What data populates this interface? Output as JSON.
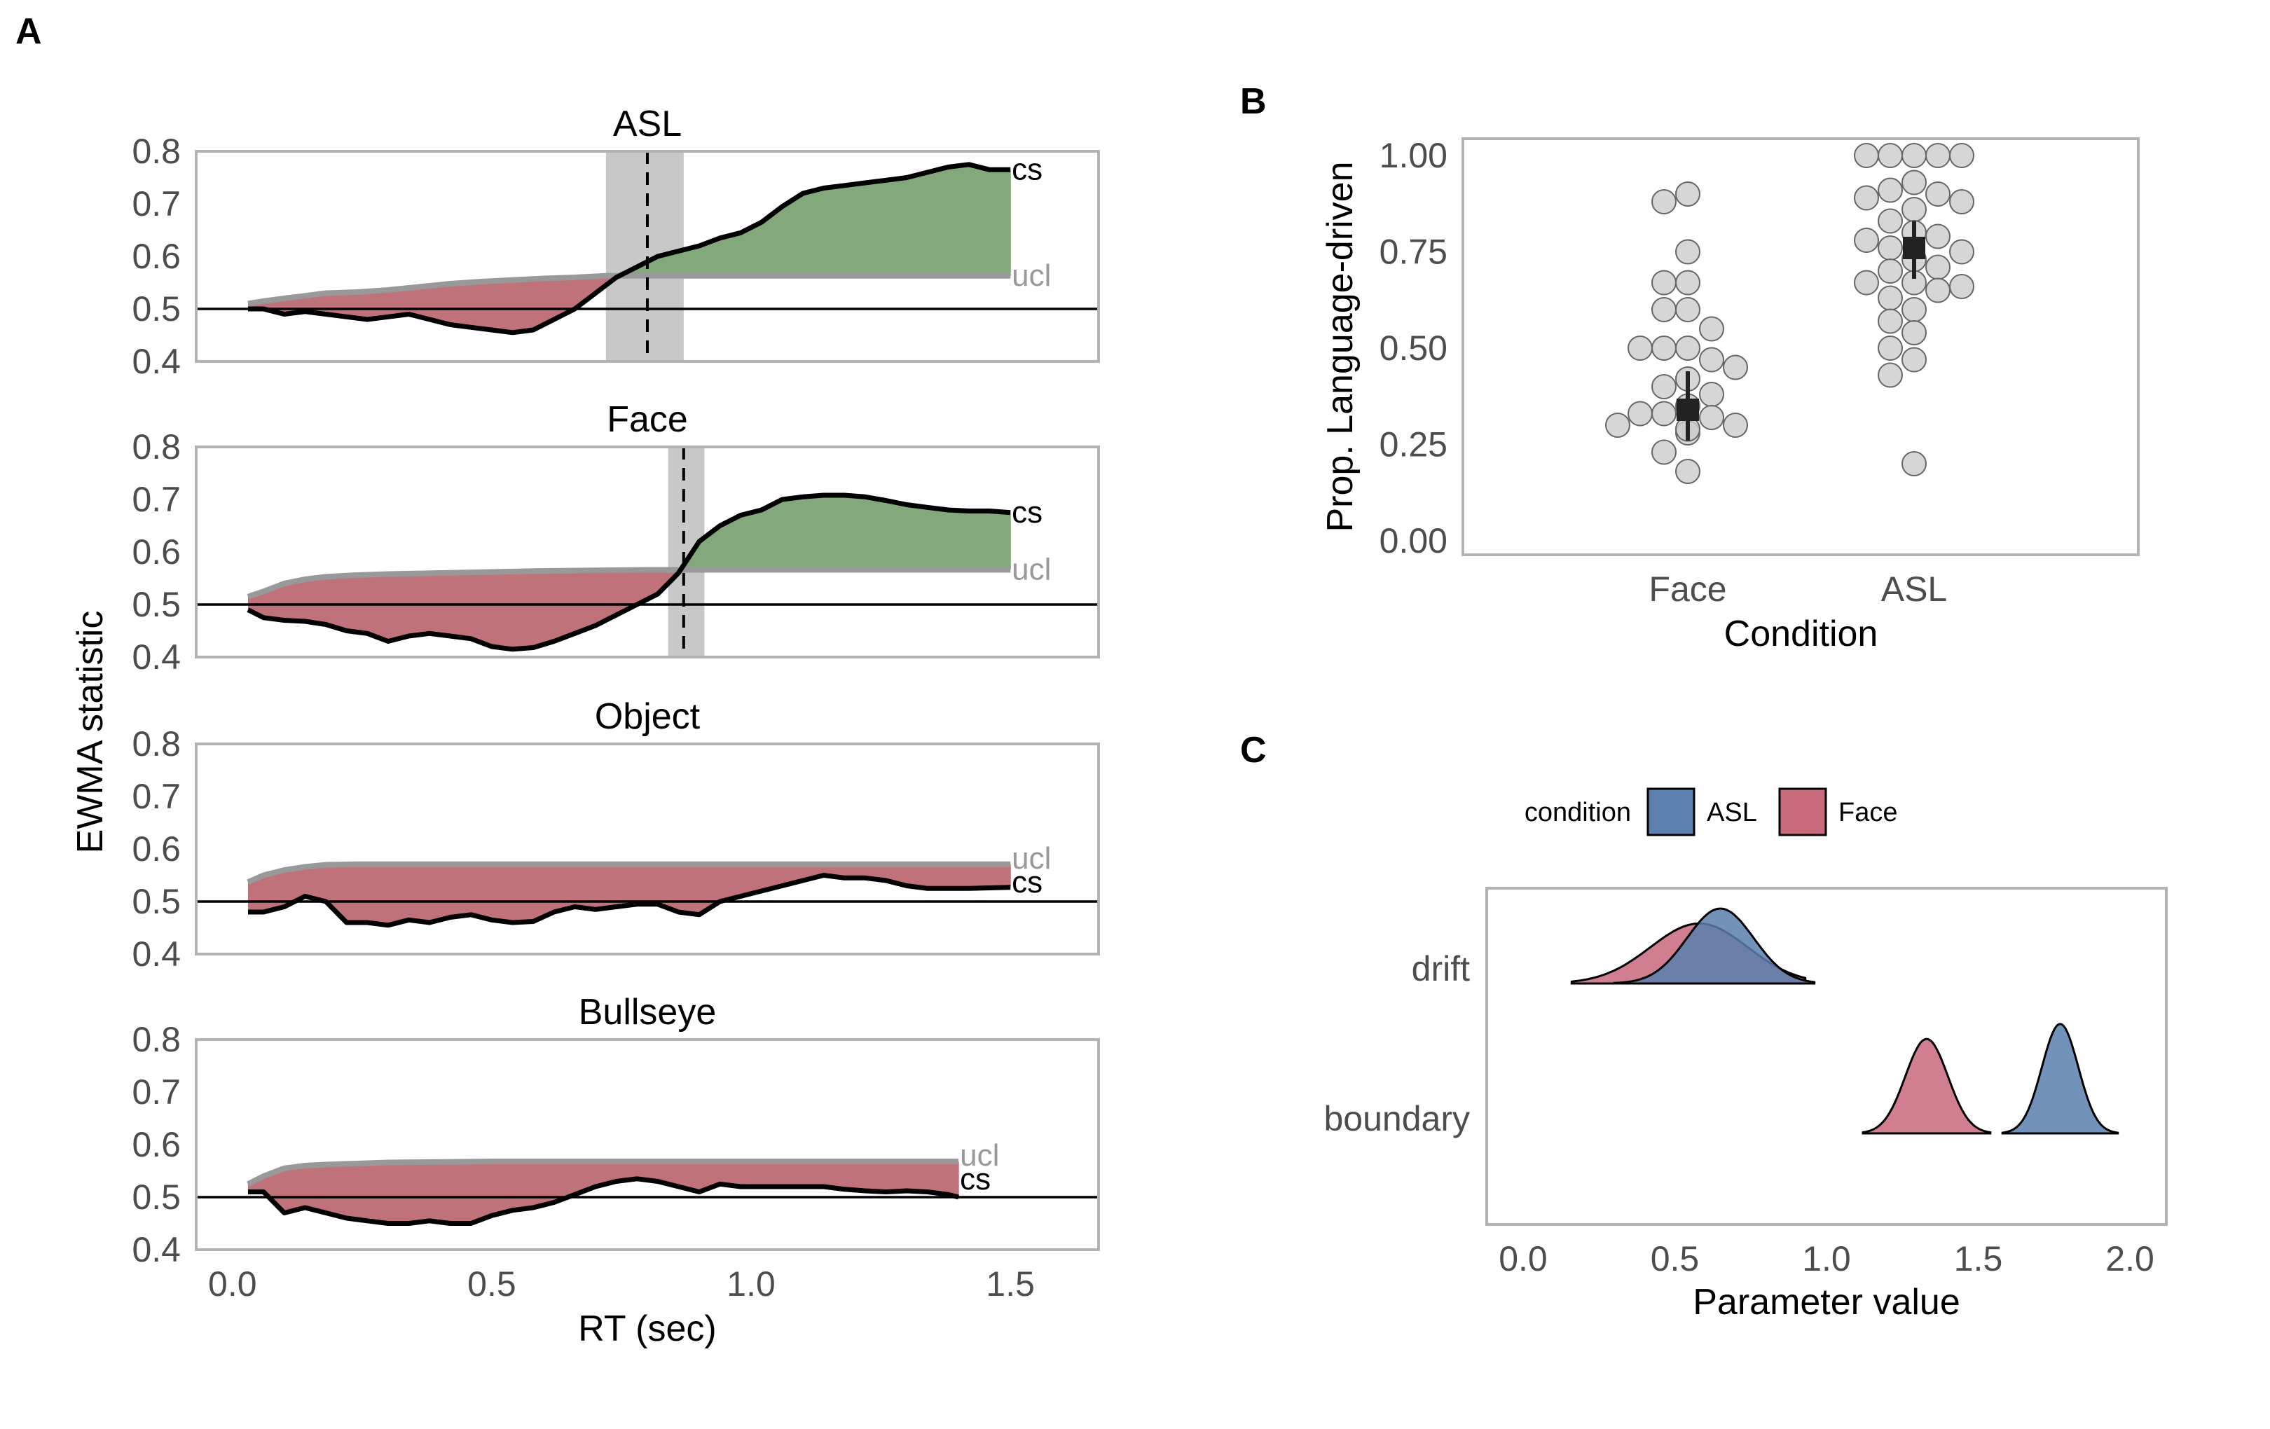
{
  "panel_labels": {
    "a": "A",
    "b": "B",
    "c": "C"
  },
  "colors": {
    "below_fill": "#c0727a",
    "above_fill": "#82a87b",
    "ucl_line": "#999999",
    "cs_line": "#000000",
    "crossing_band": "#c8c8c8",
    "asl": "#5b7fae",
    "face": "#c9697c",
    "points": "#cccccc"
  },
  "chart_data": [
    {
      "type": "area",
      "panel": "A",
      "xlabel": "RT (sec)",
      "ylabel": "EWMA statistic",
      "xlim": [
        -0.07,
        1.67
      ],
      "ylim": [
        0.4,
        0.8
      ],
      "xticks": [
        "0.0",
        "0.5",
        "1.0",
        "1.5"
      ],
      "yticks": [
        "0.4",
        "0.5",
        "0.6",
        "0.7",
        "0.8"
      ],
      "reference_line": 0.5,
      "series_labels": {
        "cs": "cs",
        "ucl": "ucl"
      },
      "facets": [
        {
          "title": "ASL",
          "crossing_time": 0.8,
          "crossing_band": [
            0.72,
            0.87
          ],
          "ucl_x": [
            0.03,
            0.06,
            0.1,
            0.14,
            0.18,
            0.24,
            0.3,
            0.36,
            0.42,
            0.48,
            0.54,
            0.6,
            0.66,
            0.72,
            1.5
          ],
          "ucl_y": [
            0.51,
            0.515,
            0.52,
            0.525,
            0.53,
            0.532,
            0.536,
            0.542,
            0.548,
            0.552,
            0.555,
            0.558,
            0.56,
            0.563,
            0.563
          ],
          "cs_x": [
            0.03,
            0.06,
            0.1,
            0.14,
            0.18,
            0.22,
            0.26,
            0.3,
            0.34,
            0.38,
            0.42,
            0.46,
            0.5,
            0.54,
            0.58,
            0.62,
            0.66,
            0.7,
            0.74,
            0.78,
            0.82,
            0.86,
            0.9,
            0.94,
            0.98,
            1.02,
            1.06,
            1.1,
            1.14,
            1.18,
            1.22,
            1.26,
            1.3,
            1.34,
            1.38,
            1.42,
            1.46,
            1.5
          ],
          "cs_y": [
            0.5,
            0.5,
            0.49,
            0.495,
            0.49,
            0.485,
            0.48,
            0.485,
            0.49,
            0.48,
            0.47,
            0.465,
            0.46,
            0.455,
            0.46,
            0.48,
            0.5,
            0.53,
            0.56,
            0.58,
            0.6,
            0.61,
            0.62,
            0.635,
            0.645,
            0.665,
            0.695,
            0.72,
            0.73,
            0.735,
            0.74,
            0.745,
            0.75,
            0.76,
            0.77,
            0.775,
            0.765,
            0.765
          ]
        },
        {
          "title": "Face",
          "crossing_time": 0.87,
          "crossing_band": [
            0.84,
            0.91
          ],
          "ucl_x": [
            0.03,
            0.06,
            0.1,
            0.14,
            0.18,
            0.24,
            0.3,
            0.4,
            0.5,
            0.6,
            0.7,
            0.8,
            1.5
          ],
          "ucl_y": [
            0.515,
            0.525,
            0.54,
            0.548,
            0.553,
            0.556,
            0.558,
            0.56,
            0.562,
            0.564,
            0.565,
            0.566,
            0.566
          ],
          "cs_x": [
            0.03,
            0.06,
            0.1,
            0.14,
            0.18,
            0.22,
            0.26,
            0.3,
            0.34,
            0.38,
            0.42,
            0.46,
            0.5,
            0.54,
            0.58,
            0.62,
            0.66,
            0.7,
            0.74,
            0.78,
            0.82,
            0.86,
            0.9,
            0.94,
            0.98,
            1.02,
            1.06,
            1.1,
            1.14,
            1.18,
            1.22,
            1.26,
            1.3,
            1.34,
            1.38,
            1.42,
            1.46,
            1.5
          ],
          "cs_y": [
            0.49,
            0.475,
            0.47,
            0.468,
            0.462,
            0.45,
            0.445,
            0.43,
            0.44,
            0.445,
            0.44,
            0.435,
            0.42,
            0.415,
            0.418,
            0.43,
            0.445,
            0.46,
            0.48,
            0.5,
            0.52,
            0.56,
            0.62,
            0.65,
            0.67,
            0.68,
            0.7,
            0.705,
            0.708,
            0.708,
            0.705,
            0.698,
            0.69,
            0.685,
            0.68,
            0.678,
            0.678,
            0.675
          ]
        },
        {
          "title": "Object",
          "ucl_x": [
            0.03,
            0.06,
            0.1,
            0.14,
            0.18,
            0.24,
            0.3,
            0.4,
            0.5,
            0.6,
            0.7,
            0.8,
            1.5
          ],
          "ucl_y": [
            0.537,
            0.55,
            0.56,
            0.566,
            0.57,
            0.571,
            0.571,
            0.571,
            0.571,
            0.571,
            0.571,
            0.571,
            0.571
          ],
          "cs_x": [
            0.03,
            0.06,
            0.1,
            0.14,
            0.18,
            0.22,
            0.26,
            0.3,
            0.34,
            0.38,
            0.42,
            0.46,
            0.5,
            0.54,
            0.58,
            0.62,
            0.66,
            0.7,
            0.74,
            0.78,
            0.82,
            0.86,
            0.9,
            0.94,
            0.98,
            1.02,
            1.06,
            1.1,
            1.14,
            1.18,
            1.22,
            1.26,
            1.3,
            1.34,
            1.38,
            1.42,
            1.46,
            1.5
          ],
          "cs_y": [
            0.48,
            0.48,
            0.49,
            0.51,
            0.5,
            0.46,
            0.46,
            0.455,
            0.465,
            0.46,
            0.47,
            0.475,
            0.465,
            0.46,
            0.462,
            0.48,
            0.49,
            0.485,
            0.49,
            0.495,
            0.495,
            0.48,
            0.475,
            0.5,
            0.51,
            0.52,
            0.53,
            0.54,
            0.55,
            0.545,
            0.545,
            0.54,
            0.53,
            0.525,
            0.525,
            0.525,
            0.526,
            0.527
          ]
        },
        {
          "title": "Bullseye",
          "ucl_x": [
            0.03,
            0.06,
            0.1,
            0.14,
            0.18,
            0.24,
            0.3,
            0.4,
            0.5,
            0.6,
            0.7,
            0.8,
            1.4
          ],
          "ucl_y": [
            0.525,
            0.54,
            0.555,
            0.56,
            0.562,
            0.564,
            0.566,
            0.567,
            0.568,
            0.568,
            0.568,
            0.568,
            0.568
          ],
          "cs_x": [
            0.03,
            0.06,
            0.1,
            0.14,
            0.18,
            0.22,
            0.26,
            0.3,
            0.34,
            0.38,
            0.42,
            0.46,
            0.5,
            0.54,
            0.58,
            0.62,
            0.66,
            0.7,
            0.74,
            0.78,
            0.82,
            0.86,
            0.9,
            0.94,
            0.98,
            1.02,
            1.06,
            1.1,
            1.14,
            1.18,
            1.22,
            1.26,
            1.3,
            1.34,
            1.38,
            1.4
          ],
          "cs_y": [
            0.51,
            0.51,
            0.47,
            0.48,
            0.47,
            0.46,
            0.455,
            0.45,
            0.45,
            0.455,
            0.45,
            0.45,
            0.465,
            0.475,
            0.48,
            0.49,
            0.505,
            0.52,
            0.53,
            0.535,
            0.53,
            0.52,
            0.51,
            0.525,
            0.52,
            0.52,
            0.52,
            0.52,
            0.52,
            0.515,
            0.512,
            0.51,
            0.512,
            0.51,
            0.505,
            0.5
          ]
        }
      ]
    },
    {
      "type": "scatter",
      "panel": "B",
      "xlabel": "Condition",
      "ylabel": "Prop. Language-driven",
      "categories": [
        "Face",
        "ASL"
      ],
      "ylim": [
        0,
        1
      ],
      "yticks": [
        "0.00",
        "0.25",
        "0.50",
        "0.75",
        "1.00"
      ],
      "series": [
        {
          "category": "Face",
          "mean": 0.34,
          "ci": [
            0.26,
            0.44
          ],
          "points": [
            0.9,
            0.88,
            0.75,
            0.67,
            0.67,
            0.6,
            0.6,
            0.55,
            0.5,
            0.5,
            0.5,
            0.47,
            0.45,
            0.42,
            0.4,
            0.38,
            0.35,
            0.33,
            0.33,
            0.32,
            0.3,
            0.3,
            0.28,
            0.29,
            0.23,
            0.18
          ]
        },
        {
          "category": "ASL",
          "mean": 0.76,
          "ci": [
            0.68,
            0.83
          ],
          "points": [
            1.0,
            1.0,
            1.0,
            1.0,
            1.0,
            0.93,
            0.91,
            0.9,
            0.89,
            0.88,
            0.86,
            0.83,
            0.8,
            0.79,
            0.78,
            0.76,
            0.75,
            0.73,
            0.71,
            0.7,
            0.67,
            0.67,
            0.66,
            0.65,
            0.63,
            0.6,
            0.57,
            0.54,
            0.5,
            0.47,
            0.43,
            0.2
          ]
        }
      ]
    },
    {
      "type": "area",
      "panel": "C",
      "xlabel": "Parameter value",
      "categories": [
        "drift",
        "boundary"
      ],
      "xlim": [
        -0.12,
        2.12
      ],
      "xticks": [
        "0.0",
        "0.5",
        "1.0",
        "1.5",
        "2.0"
      ],
      "legend": {
        "title": "condition",
        "placement": "top",
        "entries": [
          "ASL",
          "Face"
        ]
      },
      "series": [
        {
          "name": "ASL",
          "parameter": "drift",
          "range": [
            0.3,
            0.96
          ],
          "peak_x": 0.65,
          "peak_h": 0.5,
          "sd": 0.11
        },
        {
          "name": "Face",
          "parameter": "drift",
          "range": [
            0.16,
            0.93
          ],
          "peak_x": 0.58,
          "peak_h": 0.4,
          "sd": 0.16
        },
        {
          "name": "ASL",
          "parameter": "boundary",
          "range": [
            1.58,
            1.96
          ],
          "peak_x": 1.77,
          "peak_h": 0.73,
          "sd": 0.06
        },
        {
          "name": "Face",
          "parameter": "boundary",
          "range": [
            1.12,
            1.54
          ],
          "peak_x": 1.33,
          "peak_h": 0.63,
          "sd": 0.07
        }
      ]
    }
  ]
}
